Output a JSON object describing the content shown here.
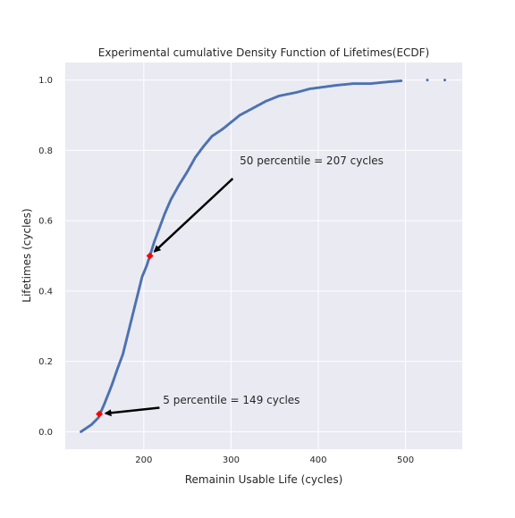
{
  "chart_data": {
    "type": "scatter",
    "title": "Experimental cumulative Density Function of Lifetimes(ECDF)",
    "xlabel": "Remainin Usable Life (cycles)",
    "ylabel": "Lifetimes (cycles)",
    "xlim": [
      110,
      565
    ],
    "ylim": [
      -0.05,
      1.05
    ],
    "xticks": [
      200,
      300,
      400,
      500
    ],
    "yticks": [
      0.0,
      0.2,
      0.4,
      0.6,
      0.8,
      1.0
    ],
    "xtick_labels": [
      "200",
      "300",
      "400",
      "500"
    ],
    "ytick_labels": [
      "0.0",
      "0.2",
      "0.4",
      "0.6",
      "0.8",
      "1.0"
    ],
    "grid": true,
    "style": {
      "background": "#eaeaf2",
      "grid": "#ffffff",
      "series_color": "#4c72b0",
      "marker_color": "#ff0000"
    },
    "curve_points": [
      [
        128,
        0.0
      ],
      [
        140,
        0.02
      ],
      [
        148,
        0.04
      ],
      [
        155,
        0.08
      ],
      [
        163,
        0.13
      ],
      [
        170,
        0.18
      ],
      [
        176,
        0.22
      ],
      [
        181,
        0.27
      ],
      [
        186,
        0.32
      ],
      [
        190,
        0.36
      ],
      [
        194,
        0.4
      ],
      [
        198,
        0.44
      ],
      [
        203,
        0.47
      ],
      [
        207,
        0.5
      ],
      [
        212,
        0.54
      ],
      [
        218,
        0.58
      ],
      [
        224,
        0.62
      ],
      [
        231,
        0.66
      ],
      [
        240,
        0.7
      ],
      [
        250,
        0.74
      ],
      [
        259,
        0.78
      ],
      [
        268,
        0.81
      ],
      [
        278,
        0.84
      ],
      [
        290,
        0.86
      ],
      [
        300,
        0.88
      ],
      [
        310,
        0.9
      ],
      [
        325,
        0.92
      ],
      [
        340,
        0.94
      ],
      [
        355,
        0.955
      ],
      [
        375,
        0.965
      ],
      [
        390,
        0.975
      ],
      [
        405,
        0.98
      ],
      [
        420,
        0.985
      ],
      [
        440,
        0.99
      ],
      [
        460,
        0.99
      ],
      [
        480,
        0.995
      ],
      [
        495,
        0.998
      ]
    ],
    "sparse_points": [
      [
        525,
        1.0
      ],
      [
        545,
        1.0
      ]
    ],
    "markers": [
      {
        "name": "p5",
        "x": 149,
        "y": 0.05
      },
      {
        "name": "p50",
        "x": 207,
        "y": 0.5
      }
    ],
    "annotations": [
      {
        "name": "p50",
        "text": "50 percentile = 207 cycles",
        "text_x": 310,
        "text_y": 0.76,
        "arrow_from_x": 302,
        "arrow_from_y": 0.72,
        "arrow_to_x": 207,
        "arrow_to_y": 0.5
      },
      {
        "name": "p5",
        "text": "5 percentile = 149 cycles",
        "text_x": 222,
        "text_y": 0.08,
        "arrow_from_x": 218,
        "arrow_from_y": 0.068,
        "arrow_to_x": 149,
        "arrow_to_y": 0.05
      }
    ]
  }
}
